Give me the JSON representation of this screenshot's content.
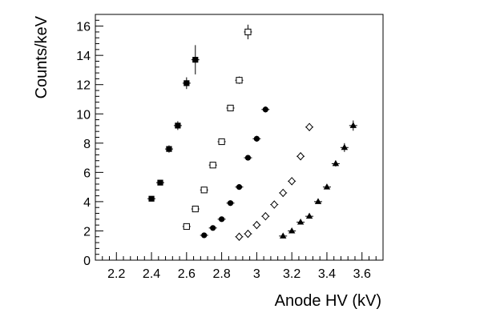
{
  "chart_data": {
    "type": "scatter",
    "xlabel": "Anode HV (kV)",
    "ylabel": "Counts/keV",
    "xlim": [
      2.08,
      3.72
    ],
    "ylim": [
      0,
      16.8
    ],
    "x_ticks": [
      2.2,
      2.4,
      2.6,
      2.8,
      3.0,
      3.2,
      3.4,
      3.6
    ],
    "x_tick_labels": [
      "2.2",
      "2.4",
      "2.6",
      "2.8",
      "3",
      "3.2",
      "3.4",
      "3.6"
    ],
    "y_ticks": [
      0,
      2,
      4,
      6,
      8,
      10,
      12,
      14,
      16
    ],
    "y_tick_labels": [
      "0",
      "2",
      "4",
      "6",
      "8",
      "10",
      "12",
      "14",
      "16"
    ],
    "grid": false,
    "legend": "none",
    "series": [
      {
        "marker": "filled-square",
        "x": [
          2.4,
          2.45,
          2.5,
          2.55,
          2.6,
          2.65
        ],
        "y": [
          4.2,
          5.3,
          7.6,
          9.2,
          12.1,
          13.7
        ],
        "yerr": [
          0.15,
          0.18,
          0.25,
          0.3,
          0.4,
          1.0
        ]
      },
      {
        "marker": "open-square",
        "x": [
          2.6,
          2.65,
          2.7,
          2.75,
          2.8,
          2.85,
          2.9,
          2.95
        ],
        "y": [
          2.3,
          3.5,
          4.8,
          6.5,
          8.1,
          10.4,
          12.3,
          15.6
        ],
        "yerr": [
          0.08,
          0.1,
          0.12,
          0.15,
          0.18,
          0.2,
          0.25,
          0.5
        ]
      },
      {
        "marker": "filled-circle",
        "x": [
          2.7,
          2.75,
          2.8,
          2.85,
          2.9,
          2.95,
          3.0,
          3.05
        ],
        "y": [
          1.7,
          2.2,
          2.8,
          3.9,
          5.0,
          7.0,
          8.3,
          10.3
        ],
        "yerr": [
          0.05,
          0.06,
          0.08,
          0.1,
          0.12,
          0.15,
          0.2,
          0.2
        ]
      },
      {
        "marker": "open-diamond",
        "x": [
          2.9,
          2.95,
          3.0,
          3.05,
          3.1,
          3.15,
          3.2,
          3.25,
          3.3
        ],
        "y": [
          1.6,
          1.8,
          2.4,
          3.0,
          3.8,
          4.6,
          5.4,
          7.1,
          9.1
        ],
        "yerr": [
          0.05,
          0.05,
          0.06,
          0.08,
          0.1,
          0.12,
          0.15,
          0.2,
          0.2
        ]
      },
      {
        "marker": "filled-triangle",
        "x": [
          3.15,
          3.2,
          3.25,
          3.3,
          3.35,
          3.4,
          3.45,
          3.5,
          3.55
        ],
        "y": [
          1.65,
          2.0,
          2.6,
          3.0,
          4.0,
          5.0,
          6.6,
          7.7,
          9.2
        ],
        "yerr": [
          0.05,
          0.05,
          0.06,
          0.08,
          0.1,
          0.12,
          0.2,
          0.3,
          0.35
        ]
      }
    ]
  }
}
